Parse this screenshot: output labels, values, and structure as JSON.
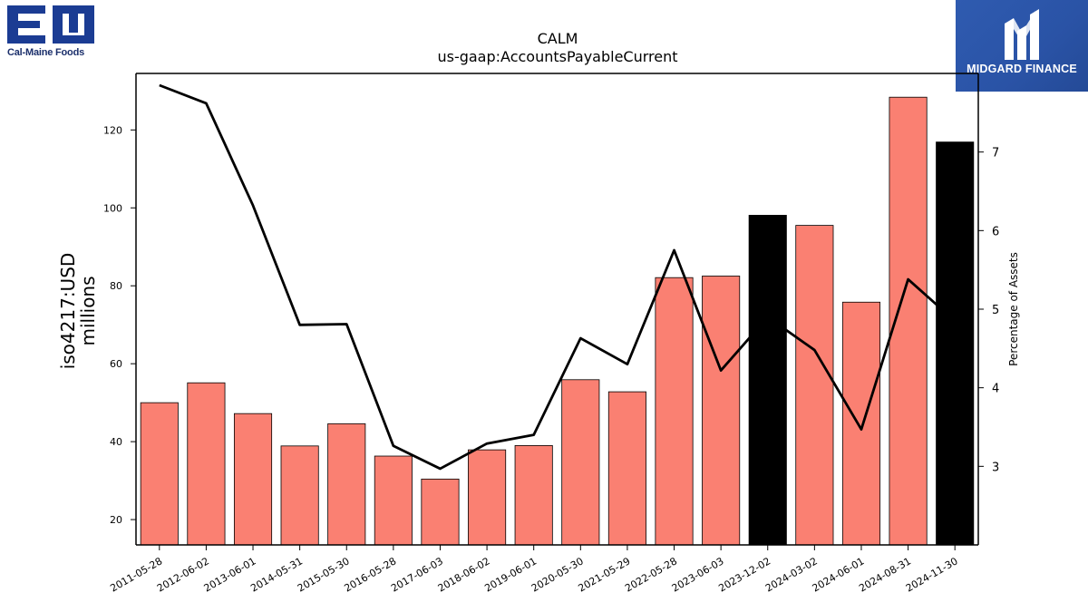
{
  "logos": {
    "left_name": "Cal-Maine Foods",
    "left_mark": "EM",
    "left_color": "#1b3c93",
    "right_name": "MIDGARD FINANCE",
    "right_color": "#2a55a8"
  },
  "chart_data": {
    "type": "bar",
    "title": "CALM",
    "subtitle": "us-gaap:AccountsPayableCurrent",
    "ylabel": "iso4217:USD\nmillions",
    "y2label": "Percentage of Assets",
    "ylim": [
      13.5,
      134.5
    ],
    "y2lim": [
      2.0,
      8.0
    ],
    "yticks": [
      20,
      40,
      60,
      80,
      100,
      120
    ],
    "y2ticks": [
      3,
      4,
      5,
      6,
      7
    ],
    "grid": false,
    "categories": [
      "2011-05-28",
      "2012-06-02",
      "2013-06-01",
      "2014-05-31",
      "2015-05-30",
      "2016-05-28",
      "2017-06-03",
      "2018-06-02",
      "2019-06-01",
      "2020-05-30",
      "2021-05-29",
      "2022-05-28",
      "2023-06-03",
      "2023-12-02",
      "2024-03-02",
      "2024-06-01",
      "2024-08-31",
      "2024-11-30"
    ],
    "series": [
      {
        "type": "bar",
        "axis": "left",
        "values": [
          50.0,
          55.1,
          47.2,
          38.9,
          44.6,
          36.3,
          30.4,
          37.9,
          39.0,
          55.9,
          52.8,
          82.1,
          82.5,
          98.1,
          95.5,
          75.8,
          128.4,
          116.9
        ],
        "colors": [
          "#fa8072",
          "#fa8072",
          "#fa8072",
          "#fa8072",
          "#fa8072",
          "#fa8072",
          "#fa8072",
          "#fa8072",
          "#fa8072",
          "#fa8072",
          "#fa8072",
          "#fa8072",
          "#fa8072",
          "#000000",
          "#fa8072",
          "#fa8072",
          "#fa8072",
          "#000000"
        ]
      },
      {
        "type": "line",
        "axis": "right",
        "color": "#000000",
        "values": [
          7.85,
          7.62,
          6.32,
          4.8,
          4.81,
          3.26,
          2.97,
          3.29,
          3.4,
          4.63,
          4.3,
          5.75,
          4.22,
          4.9,
          4.48,
          3.47,
          5.38,
          4.85
        ]
      }
    ]
  }
}
